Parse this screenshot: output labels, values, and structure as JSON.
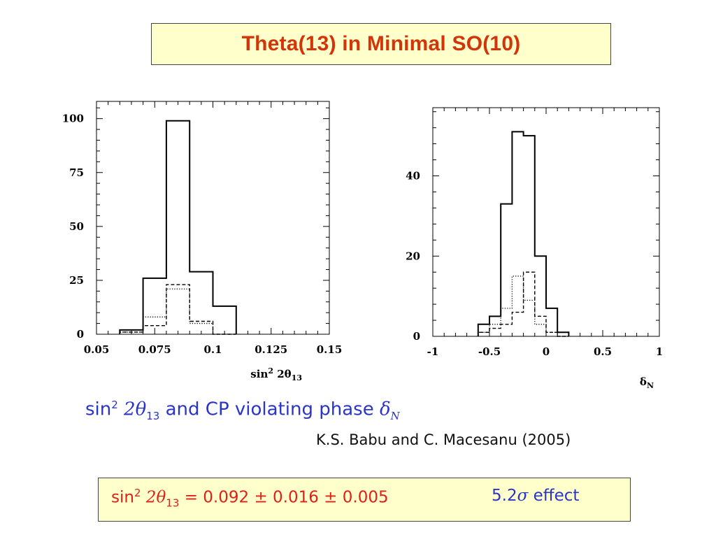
{
  "slide": {
    "title": "Theta(13) in Minimal SO(10)",
    "caption_pre": "sin",
    "caption_sup": "2",
    "caption_mid": " 2θ",
    "caption_sub": "13",
    "caption_text": " and CP violating phase ",
    "caption_delta": "δ",
    "caption_delta_sub": "N",
    "citation": "K.S. Babu and C. Macesanu (2005)",
    "result_pre": "sin",
    "result_sup": "2",
    "result_mid": " 2θ",
    "result_sub": "13",
    "result_value": " = 0.092 ± 0.016 ± 0.005",
    "result_effect_num": "5.2",
    "result_effect_sigma": "σ",
    "result_effect_text": " effect"
  },
  "colors": {
    "title": "#d2350a",
    "caption": "#2a35c8",
    "result": "#e0201a",
    "box_fill": "#ffffcc"
  },
  "chart_data": [
    {
      "type": "histogram",
      "xlabel_main": "sin",
      "xlabel_sup": "2",
      "xlabel_rest": " 2θ",
      "xlabel_sub": "13",
      "xlim": [
        0.05,
        0.15
      ],
      "ylim": [
        0,
        108
      ],
      "xticks": [
        0.05,
        0.075,
        0.1,
        0.125,
        0.15
      ],
      "xtick_labels": [
        "0.05",
        "0.075",
        "0.1",
        "0.125",
        "0.15"
      ],
      "yticks": [
        0,
        25,
        50,
        75,
        100
      ],
      "ytick_labels": [
        "0",
        "25",
        "50",
        "75",
        "100"
      ],
      "bin_edges": [
        0.06,
        0.07,
        0.08,
        0.09,
        0.1,
        0.11
      ],
      "series": [
        {
          "style": "solid",
          "values": [
            2,
            26,
            99,
            29,
            13
          ]
        },
        {
          "style": "dashed",
          "values": [
            1,
            4,
            23,
            6,
            0
          ]
        },
        {
          "style": "dotted",
          "values": [
            1,
            8,
            21,
            5,
            0
          ]
        }
      ]
    },
    {
      "type": "histogram",
      "xlabel_main": "δ",
      "xlabel_sub": "N",
      "xlim": [
        -1,
        1
      ],
      "ylim": [
        0,
        57
      ],
      "xticks": [
        -1,
        -0.5,
        0,
        0.5,
        1
      ],
      "xtick_labels": [
        "-1",
        "-0.5",
        "0",
        "0.5",
        "1"
      ],
      "yticks": [
        0,
        20,
        40
      ],
      "ytick_labels": [
        "0",
        "20",
        "40"
      ],
      "bin_edges": [
        -0.6,
        -0.5,
        -0.4,
        -0.3,
        -0.2,
        -0.1,
        0,
        0.1,
        0.2
      ],
      "series": [
        {
          "style": "solid",
          "values": [
            3,
            5,
            33,
            51,
            50,
            20,
            7,
            1
          ]
        },
        {
          "style": "dashed",
          "values": [
            1,
            2,
            3,
            6,
            16,
            5,
            1,
            0
          ]
        },
        {
          "style": "dotted",
          "values": [
            1,
            3,
            7,
            15,
            9,
            3,
            1,
            0
          ]
        }
      ]
    }
  ]
}
